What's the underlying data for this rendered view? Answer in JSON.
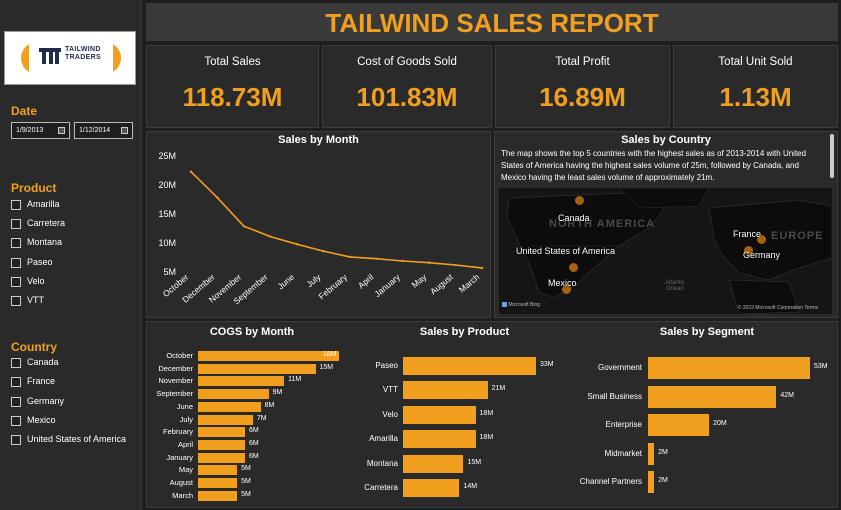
{
  "report_title": "TAILWIND SALES REPORT",
  "logo": {
    "line1": "TAILWIND",
    "line2": "TRADERS"
  },
  "colors": {
    "accent": "#f0a01e",
    "panel": "#2a2a2a",
    "background": "#1e1e1e"
  },
  "filters": {
    "date": {
      "label": "Date",
      "start": "1/9/2013",
      "end": "1/12/2014"
    },
    "product": {
      "label": "Product",
      "items": [
        "Amarilla",
        "Carretera",
        "Montana",
        "Paseo",
        "Velo",
        "VTT"
      ]
    },
    "country": {
      "label": "Country",
      "items": [
        "Canada",
        "France",
        "Germany",
        "Mexico",
        "United States of America"
      ]
    }
  },
  "kpis": [
    {
      "label": "Total Sales",
      "value": "118.73M"
    },
    {
      "label": "Cost of Goods Sold",
      "value": "101.83M"
    },
    {
      "label": "Total Profit",
      "value": "16.89M"
    },
    {
      "label": "Total Unit Sold",
      "value": "1.13M"
    }
  ],
  "map": {
    "title": "Sales by Country",
    "description": "The map shows the top 5 countries with the highest sales as of 2013-2014 with United States of America having the highest sales volume of 25m, followed by Canada, and Mexico having the least sales volume of approximately 21m.",
    "labels": {
      "canada": "Canada",
      "usa": "United States of America",
      "mexico": "Mexico",
      "france": "France",
      "germany": "Germany"
    },
    "bg_labels": {
      "north_america": "NORTH AMERICA",
      "europe": "EUROPE",
      "ocean_1": "Atlantic",
      "ocean_2": "Ocean"
    },
    "attribution_left": "Microsoft Bing",
    "attribution_right": "© 2023 Microsoft Corporation  Terms"
  },
  "chart_data": [
    {
      "type": "line",
      "title": "Sales by Month",
      "categories": [
        "October",
        "December",
        "November",
        "September",
        "June",
        "July",
        "February",
        "April",
        "January",
        "May",
        "August",
        "March"
      ],
      "values": [
        22.3,
        17.8,
        12.9,
        11.1,
        9.8,
        8.6,
        7.6,
        7.3,
        6.9,
        6.6,
        6.2,
        5.7
      ],
      "ylim": [
        5,
        25
      ],
      "yticks": [
        5,
        10,
        15,
        20,
        25
      ],
      "ytick_labels": [
        "5M",
        "10M",
        "15M",
        "20M",
        "25M"
      ],
      "xlabel": "",
      "ylabel": ""
    },
    {
      "type": "bar",
      "title": "COGS by Month",
      "categories": [
        "October",
        "December",
        "November",
        "September",
        "June",
        "July",
        "February",
        "April",
        "January",
        "May",
        "August",
        "March"
      ],
      "values": [
        18,
        15,
        11,
        9,
        8,
        7,
        6,
        6,
        6,
        5,
        5,
        5
      ],
      "data_labels": [
        "18M",
        "15M",
        "11M",
        "9M",
        "8M",
        "7M",
        "6M",
        "6M",
        "6M",
        "5M",
        "5M",
        "5M"
      ]
    },
    {
      "type": "bar",
      "title": "Sales by Product",
      "categories": [
        "Paseo",
        "VTT",
        "Velo",
        "Amarilla",
        "Montana",
        "Carretera"
      ],
      "values": [
        33,
        21,
        18,
        18,
        15,
        14
      ],
      "data_labels": [
        "33M",
        "21M",
        "18M",
        "18M",
        "15M",
        "14M"
      ]
    },
    {
      "type": "bar",
      "title": "Sales by Segment",
      "categories": [
        "Government",
        "Small Business",
        "Enterprise",
        "Midmarket",
        "Channel Partners"
      ],
      "values": [
        53,
        42,
        20,
        2,
        2
      ],
      "data_labels": [
        "53M",
        "42M",
        "20M",
        "2M",
        "2M"
      ]
    }
  ]
}
